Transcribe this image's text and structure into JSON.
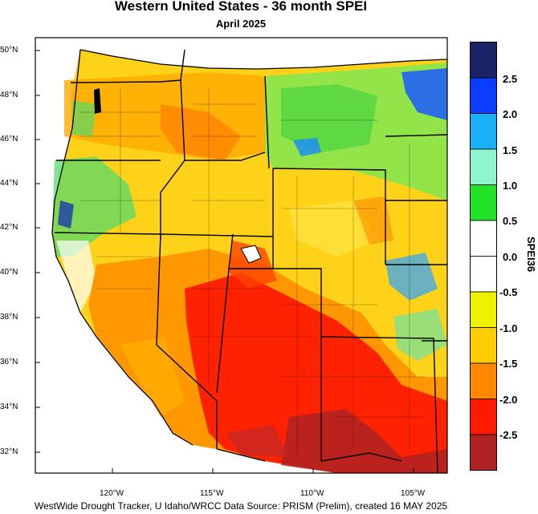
{
  "title": "Western United States - 36 month SPEI",
  "subtitle": "April 2025",
  "footer": "WestWide Drought Tracker, U Idaho/WRCC Data Source: PRISM (Prelim), created 16 MAY 2025",
  "map": {
    "latitude_labels": [
      "50°N",
      "48°N",
      "46°N",
      "44°N",
      "42°N",
      "40°N",
      "38°N",
      "36°N",
      "34°N",
      "32°N"
    ],
    "longitude_labels": [
      "120°W",
      "115°W",
      "110°W",
      "105°W"
    ]
  },
  "colorbar": {
    "title": "SPEI36",
    "labels": [
      "2.5",
      "2.0",
      "1.5",
      "1.0",
      "0.5",
      "0.0",
      "-0.5",
      "-1.0",
      "-1.5",
      "-2.0",
      "-2.5"
    ],
    "colors": [
      "#1a2466",
      "#0a3dff",
      "#1ab0f5",
      "#8ff5cf",
      "#22e22a",
      "#ffffff",
      "#ffffff",
      "#eef200",
      "#ffcc00",
      "#ff8800",
      "#ff1a00",
      "#b02222"
    ]
  }
}
